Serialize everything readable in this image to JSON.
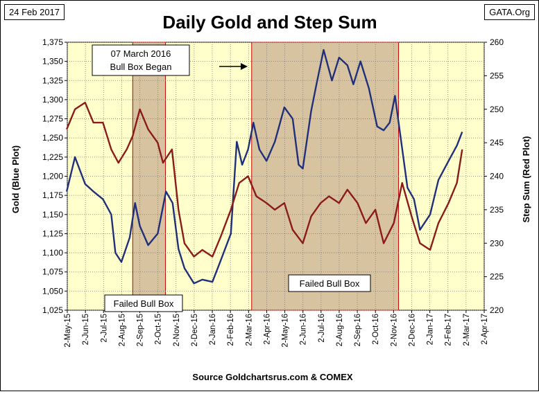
{
  "date_tag": "24 Feb 2017",
  "source_tag": "GATA.Org",
  "colors": {
    "plot_bg": "#FFFFCC",
    "bull_box": "#D7C3A0",
    "box_border": "#C00000",
    "blue": "#1F2F7A",
    "red": "#8B1A1A"
  },
  "chart_data": {
    "type": "line",
    "title": "Daily Gold and Step Sum",
    "xlabel": "Source Goldchartsrus.com & COMEX",
    "ylabel": "Gold    (Blue Plot)",
    "y2label": "Step Sum    (Red Plot)",
    "ylim": [
      1025,
      1375
    ],
    "y2lim": [
      220,
      260
    ],
    "grid": "dotted",
    "x_ticks": [
      "2-May-15",
      "2-Jun-15",
      "2-Jul-15",
      "2-Aug-15",
      "2-Sep-15",
      "2-Oct-15",
      "2-Nov-15",
      "2-Dec-15",
      "2-Jan-16",
      "2-Feb-16",
      "2-Mar-16",
      "2-Apr-16",
      "2-May-16",
      "2-Jun-16",
      "2-Jul-16",
      "2-Aug-16",
      "2-Sep-16",
      "2-Oct-16",
      "2-Nov-16",
      "2-Dec-16",
      "2-Jan-17",
      "2-Feb-17",
      "2-Mar-17",
      "2-Apr-17"
    ],
    "y_ticks": [
      "1,025",
      "1,050",
      "1,075",
      "1,100",
      "1,125",
      "1,150",
      "1,175",
      "1,200",
      "1,225",
      "1,250",
      "1,275",
      "1,300",
      "1,325",
      "1,350",
      "1,375"
    ],
    "y2_ticks": [
      "220",
      "225",
      "230",
      "235",
      "240",
      "245",
      "250",
      "255",
      "260"
    ],
    "boxes": [
      {
        "label": "Failed Bull Box",
        "x0": "2015-08-20",
        "x1": "2015-10-14"
      },
      {
        "label": "Failed Bull Box",
        "x0": "2016-03-07",
        "x1": "2016-11-09"
      }
    ],
    "annotations": [
      "07 March 2016",
      "Bull Box Began"
    ],
    "series": [
      {
        "name": "Gold",
        "axis": "left",
        "points": [
          [
            "2015-05-01",
            1180
          ],
          [
            "2015-05-15",
            1225
          ],
          [
            "2015-06-01",
            1190
          ],
          [
            "2015-06-15",
            1180
          ],
          [
            "2015-07-01",
            1170
          ],
          [
            "2015-07-15",
            1150
          ],
          [
            "2015-07-22",
            1100
          ],
          [
            "2015-08-01",
            1088
          ],
          [
            "2015-08-15",
            1120
          ],
          [
            "2015-08-24",
            1165
          ],
          [
            "2015-09-01",
            1135
          ],
          [
            "2015-09-15",
            1110
          ],
          [
            "2015-10-01",
            1125
          ],
          [
            "2015-10-15",
            1180
          ],
          [
            "2015-10-26",
            1165
          ],
          [
            "2015-11-05",
            1105
          ],
          [
            "2015-11-15",
            1080
          ],
          [
            "2015-12-01",
            1060
          ],
          [
            "2015-12-15",
            1065
          ],
          [
            "2016-01-01",
            1062
          ],
          [
            "2016-01-15",
            1090
          ],
          [
            "2016-02-01",
            1125
          ],
          [
            "2016-02-11",
            1245
          ],
          [
            "2016-02-20",
            1215
          ],
          [
            "2016-03-01",
            1235
          ],
          [
            "2016-03-10",
            1270
          ],
          [
            "2016-03-20",
            1235
          ],
          [
            "2016-04-01",
            1220
          ],
          [
            "2016-04-15",
            1245
          ],
          [
            "2016-05-01",
            1290
          ],
          [
            "2016-05-15",
            1275
          ],
          [
            "2016-05-25",
            1215
          ],
          [
            "2016-06-01",
            1210
          ],
          [
            "2016-06-15",
            1285
          ],
          [
            "2016-06-24",
            1320
          ],
          [
            "2016-07-06",
            1365
          ],
          [
            "2016-07-20",
            1325
          ],
          [
            "2016-08-01",
            1355
          ],
          [
            "2016-08-15",
            1345
          ],
          [
            "2016-08-25",
            1320
          ],
          [
            "2016-09-06",
            1350
          ],
          [
            "2016-09-20",
            1315
          ],
          [
            "2016-10-04",
            1265
          ],
          [
            "2016-10-15",
            1260
          ],
          [
            "2016-10-25",
            1270
          ],
          [
            "2016-11-03",
            1305
          ],
          [
            "2016-11-10",
            1265
          ],
          [
            "2016-11-24",
            1185
          ],
          [
            "2016-12-05",
            1170
          ],
          [
            "2016-12-15",
            1130
          ],
          [
            "2017-01-01",
            1150
          ],
          [
            "2017-01-15",
            1195
          ],
          [
            "2017-02-01",
            1220
          ],
          [
            "2017-02-15",
            1240
          ],
          [
            "2017-02-24",
            1258
          ]
        ]
      },
      {
        "name": "Step Sum",
        "axis": "right",
        "points": [
          [
            "2015-05-01",
            247
          ],
          [
            "2015-05-15",
            250
          ],
          [
            "2015-06-01",
            251
          ],
          [
            "2015-06-15",
            248
          ],
          [
            "2015-07-01",
            248
          ],
          [
            "2015-07-15",
            244
          ],
          [
            "2015-07-27",
            242
          ],
          [
            "2015-08-10",
            244
          ],
          [
            "2015-08-20",
            246
          ],
          [
            "2015-09-01",
            250
          ],
          [
            "2015-09-15",
            247
          ],
          [
            "2015-10-01",
            245
          ],
          [
            "2015-10-10",
            242
          ],
          [
            "2015-10-25",
            244
          ],
          [
            "2015-11-05",
            235
          ],
          [
            "2015-11-15",
            230
          ],
          [
            "2015-12-01",
            228
          ],
          [
            "2015-12-15",
            229
          ],
          [
            "2016-01-01",
            228
          ],
          [
            "2016-01-15",
            231
          ],
          [
            "2016-02-01",
            235
          ],
          [
            "2016-02-15",
            239
          ],
          [
            "2016-03-01",
            240
          ],
          [
            "2016-03-15",
            237
          ],
          [
            "2016-04-01",
            236
          ],
          [
            "2016-04-15",
            235
          ],
          [
            "2016-05-01",
            236
          ],
          [
            "2016-05-15",
            232
          ],
          [
            "2016-06-01",
            230
          ],
          [
            "2016-06-15",
            234
          ],
          [
            "2016-07-01",
            236
          ],
          [
            "2016-07-15",
            237
          ],
          [
            "2016-08-01",
            236
          ],
          [
            "2016-08-15",
            238
          ],
          [
            "2016-09-01",
            236
          ],
          [
            "2016-09-15",
            233
          ],
          [
            "2016-10-01",
            235
          ],
          [
            "2016-10-15",
            230
          ],
          [
            "2016-11-01",
            233
          ],
          [
            "2016-11-15",
            239
          ],
          [
            "2016-12-01",
            234
          ],
          [
            "2016-12-15",
            230
          ],
          [
            "2017-01-01",
            229
          ],
          [
            "2017-01-15",
            233
          ],
          [
            "2017-02-01",
            236
          ],
          [
            "2017-02-15",
            239
          ],
          [
            "2017-02-24",
            244
          ]
        ]
      }
    ]
  }
}
